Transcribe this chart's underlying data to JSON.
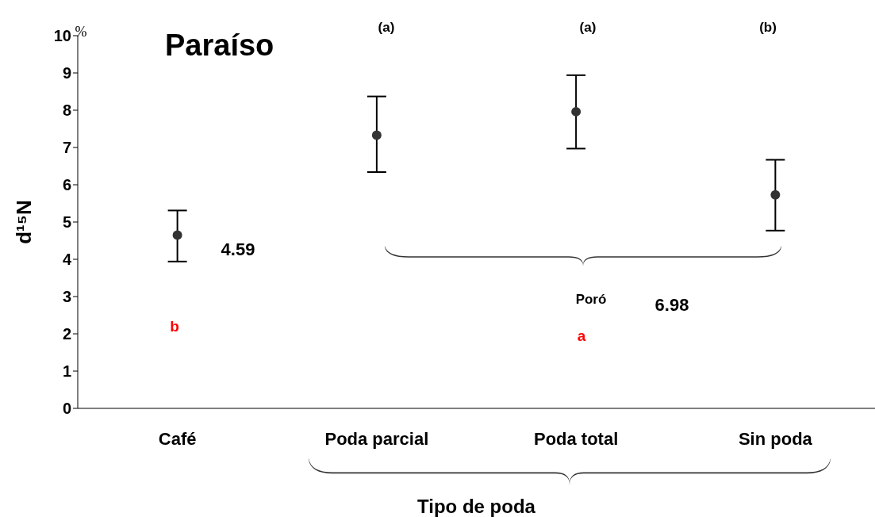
{
  "chart_data": {
    "type": "scatter",
    "title": "Paraíso",
    "xlabel": "Tipo de poda",
    "ylabel": "d¹⁵N",
    "categories": [
      "Café",
      "Poda parcial",
      "Poda total",
      "Sin poda"
    ],
    "values": [
      4.65,
      7.33,
      7.96,
      5.73
    ],
    "errors": [
      [
        3.94,
        5.31
      ],
      [
        6.34,
        8.37
      ],
      [
        6.97,
        8.94
      ],
      [
        4.77,
        6.67
      ]
    ],
    "color": "#333333",
    "marker": "circle",
    "ylim": [
      0,
      10
    ],
    "yticks": [
      0,
      1,
      2,
      3,
      4,
      5,
      6,
      7,
      8,
      9,
      10
    ],
    "annotations": [
      "%",
      "(a)",
      "(a)",
      "(b)",
      "4.59",
      "Poró",
      "6.98",
      "b",
      "a"
    ]
  }
}
